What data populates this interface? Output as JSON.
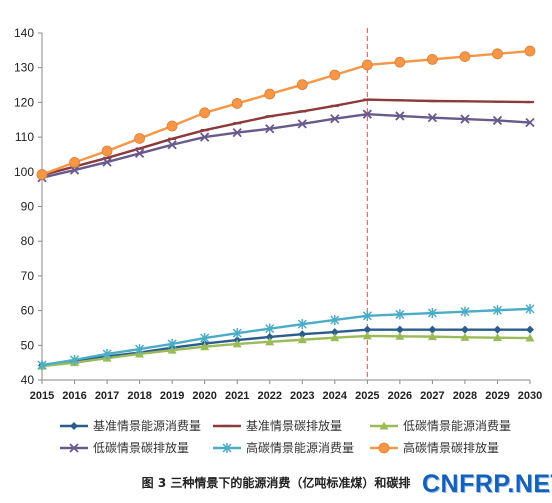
{
  "chart_data": {
    "type": "line",
    "title": "",
    "xlabel": "",
    "ylabel": "",
    "x": [
      "2015",
      "2016",
      "2017",
      "2018",
      "2019",
      "2020",
      "2021",
      "2022",
      "2023",
      "2024",
      "2025",
      "2026",
      "2027",
      "2028",
      "2029",
      "2030"
    ],
    "ylim": [
      40,
      140
    ],
    "yticks": [
      40,
      50,
      60,
      70,
      80,
      90,
      100,
      110,
      120,
      130,
      140
    ],
    "reference_line_x": "2025",
    "grid": false,
    "legend_position": "bottom",
    "series": [
      {
        "name": "基准情景能源消费量",
        "color": "#2b5d8c",
        "marker": "diamond",
        "values": [
          44.2,
          45.4,
          46.8,
          47.9,
          49.3,
          50.5,
          51.5,
          52.4,
          53.2,
          53.8,
          54.5,
          54.5,
          54.5,
          54.5,
          54.5,
          54.5
        ]
      },
      {
        "name": "基准情景碳排放量",
        "color": "#8c3a3a",
        "marker": "dash",
        "values": [
          99.0,
          101.5,
          104.0,
          106.7,
          109.5,
          112.0,
          114.0,
          116.0,
          117.4,
          119.0,
          120.8,
          120.6,
          120.4,
          120.3,
          120.2,
          120.1
        ]
      },
      {
        "name": "低碳情景能源消费量",
        "color": "#9bbb59",
        "marker": "triangle",
        "values": [
          44.0,
          45.0,
          46.3,
          47.5,
          48.6,
          49.6,
          50.4,
          51.0,
          51.6,
          52.2,
          52.7,
          52.6,
          52.5,
          52.3,
          52.2,
          52.1
        ]
      },
      {
        "name": "低碳情景碳排放量",
        "color": "#6a5a8c",
        "marker": "x",
        "values": [
          98.3,
          100.5,
          102.8,
          105.3,
          107.8,
          110.0,
          111.3,
          112.4,
          113.8,
          115.3,
          116.6,
          116.1,
          115.6,
          115.2,
          114.8,
          114.2
        ]
      },
      {
        "name": "高碳情景能源消费量",
        "color": "#4bacc6",
        "marker": "star",
        "values": [
          44.3,
          45.8,
          47.5,
          48.9,
          50.4,
          52.1,
          53.5,
          54.8,
          56.1,
          57.3,
          58.5,
          58.9,
          59.3,
          59.7,
          60.1,
          60.5
        ]
      },
      {
        "name": "高碳情景碳排放量",
        "color": "#f79646",
        "marker": "circle",
        "values": [
          99.2,
          102.7,
          106.0,
          109.6,
          113.2,
          117.0,
          119.7,
          122.4,
          125.1,
          127.9,
          130.8,
          131.6,
          132.4,
          133.2,
          134.0,
          134.8
        ]
      }
    ]
  },
  "caption": "图 3  三种情景下的能源消费（亿吨标准煤）和碳排",
  "watermark": "CNFRP.NET"
}
